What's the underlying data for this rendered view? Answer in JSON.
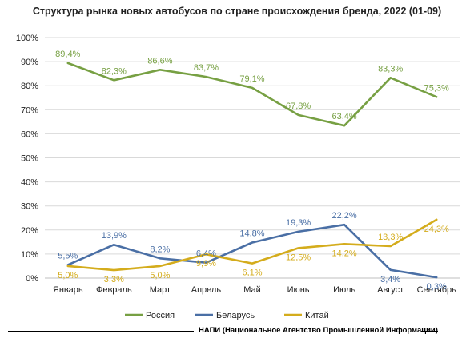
{
  "chart_data": {
    "type": "line",
    "title": "Структура рынка новых автобусов по стране происхождения бренда, 2022 (01-09)",
    "categories": [
      "Январь",
      "Февраль",
      "Март",
      "Апрель",
      "Май",
      "Июнь",
      "Июль",
      "Август",
      "Сентябрь"
    ],
    "ylim": [
      0,
      100
    ],
    "yticks": [
      "0%",
      "10%",
      "20%",
      "30%",
      "40%",
      "50%",
      "60%",
      "70%",
      "80%",
      "90%",
      "100%"
    ],
    "grid": true,
    "legend_position": "bottom",
    "series": [
      {
        "name": "Россия",
        "color": "#77a043",
        "values": [
          89.4,
          82.3,
          86.6,
          83.7,
          79.1,
          67.8,
          63.4,
          83.3,
          75.3
        ],
        "labels": [
          "89,4%",
          "82,3%",
          "86,6%",
          "83,7%",
          "79,1%",
          "67,8%",
          "63,4%",
          "83,3%",
          "75,3%"
        ]
      },
      {
        "name": "Беларусь",
        "color": "#4a6fa5",
        "values": [
          5.5,
          13.9,
          8.2,
          6.4,
          14.8,
          19.3,
          22.2,
          3.4,
          0.3
        ],
        "labels": [
          "5,5%",
          "13,9%",
          "8,2%",
          "6,4%",
          "14,8%",
          "19,3%",
          "22,2%",
          "3,4%",
          "0,3%"
        ]
      },
      {
        "name": "Китай",
        "color": "#d4ac1c",
        "values": [
          5.0,
          3.3,
          5.0,
          9.9,
          6.1,
          12.5,
          14.2,
          13.3,
          24.3
        ],
        "labels": [
          "5,0%",
          "3,3%",
          "5,0%",
          "9,9%",
          "6,1%",
          "12,5%",
          "14,2%",
          "13,3%",
          "24,3%"
        ]
      }
    ]
  },
  "source": "НАПИ (Национальное Агентство Промышленной Информации)"
}
